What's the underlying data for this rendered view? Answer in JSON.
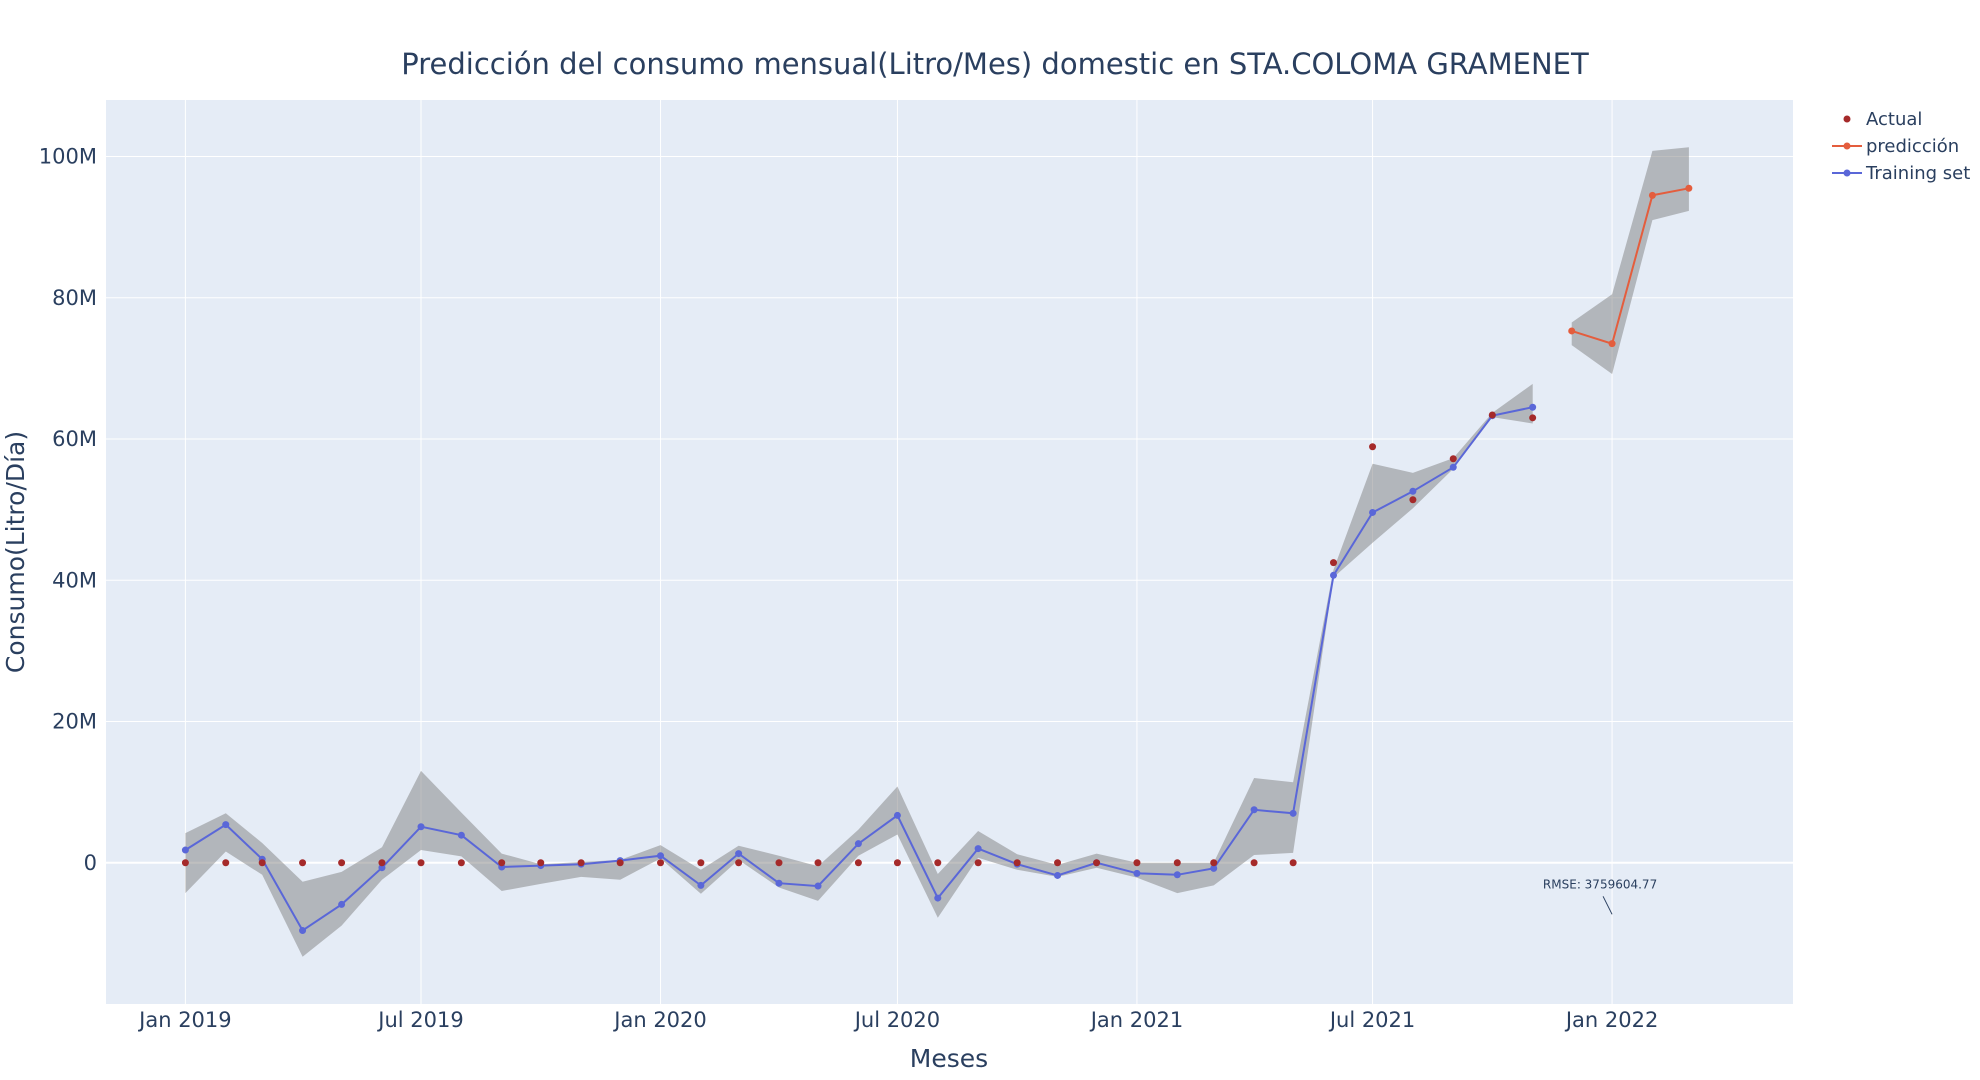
{
  "chart_data": {
    "type": "line",
    "title": "Predicción del consumo mensual(Litro/Mes) domestic en STA.COLOMA GRAMENET",
    "xlabel": "Meses",
    "ylabel": "Consumo(Litro/Día)",
    "x_range": [
      "2018-11-01",
      "2022-05-20"
    ],
    "y_range": [
      -20000000,
      108000000
    ],
    "x_ticks": [
      {
        "date": "2019-01-01",
        "label": "Jan 2019"
      },
      {
        "date": "2019-07-01",
        "label": "Jul 2019"
      },
      {
        "date": "2020-01-01",
        "label": "Jan 2020"
      },
      {
        "date": "2020-07-01",
        "label": "Jul 2020"
      },
      {
        "date": "2021-01-01",
        "label": "Jan 2021"
      },
      {
        "date": "2021-07-01",
        "label": "Jul 2021"
      },
      {
        "date": "2022-01-01",
        "label": "Jan 2022"
      }
    ],
    "y_ticks": [
      {
        "value": 0,
        "label": "0"
      },
      {
        "value": 20000000,
        "label": "20M"
      },
      {
        "value": 40000000,
        "label": "40M"
      },
      {
        "value": 60000000,
        "label": "60M"
      },
      {
        "value": 80000000,
        "label": "80M"
      },
      {
        "value": 100000000,
        "label": "100M"
      }
    ],
    "grid": true,
    "legend_position": "top-right",
    "series": [
      {
        "name": "Actual",
        "mode": "markers",
        "color": "#a52a2a",
        "x": [
          "2019-01-01",
          "2019-02-01",
          "2019-03-01",
          "2019-04-01",
          "2019-05-01",
          "2019-06-01",
          "2019-07-01",
          "2019-08-01",
          "2019-09-01",
          "2019-10-01",
          "2019-11-01",
          "2019-12-01",
          "2020-01-01",
          "2020-02-01",
          "2020-03-01",
          "2020-04-01",
          "2020-05-01",
          "2020-06-01",
          "2020-07-01",
          "2020-08-01",
          "2020-09-01",
          "2020-10-01",
          "2020-11-01",
          "2020-12-01",
          "2021-01-01",
          "2021-02-01",
          "2021-03-01",
          "2021-04-01",
          "2021-05-01",
          "2021-06-01",
          "2021-07-01",
          "2021-08-01",
          "2021-09-01",
          "2021-10-01",
          "2021-11-01"
        ],
        "y": [
          0,
          0,
          0,
          0,
          0,
          0,
          0,
          0,
          0,
          0,
          0,
          0,
          0,
          0,
          0,
          0,
          0,
          0,
          0,
          0,
          0,
          0,
          0,
          0,
          0,
          0,
          0,
          0,
          0,
          42500000,
          58900000,
          51400000,
          57200000,
          63400000,
          63000000
        ]
      },
      {
        "name": "predicción",
        "mode": "lines+markers",
        "color": "#e45d3d",
        "x": [
          "2021-12-01",
          "2022-01-01",
          "2022-02-01",
          "2022-03-01"
        ],
        "y": [
          75300000,
          73500000,
          94500000,
          95500000
        ],
        "band_upper": [
          76500000,
          80500000,
          100800000,
          101300000
        ],
        "band_lower": [
          73300000,
          69200000,
          91000000,
          92300000
        ]
      },
      {
        "name": "Training set",
        "mode": "lines+markers",
        "color": "#5a67d8",
        "x": [
          "2019-01-01",
          "2019-02-01",
          "2019-03-01",
          "2019-04-01",
          "2019-05-01",
          "2019-06-01",
          "2019-07-01",
          "2019-08-01",
          "2019-09-01",
          "2019-10-01",
          "2019-11-01",
          "2019-12-01",
          "2020-01-01",
          "2020-02-01",
          "2020-03-01",
          "2020-04-01",
          "2020-05-01",
          "2020-06-01",
          "2020-07-01",
          "2020-08-01",
          "2020-09-01",
          "2020-10-01",
          "2020-11-01",
          "2020-12-01",
          "2021-01-01",
          "2021-02-01",
          "2021-03-01",
          "2021-04-01",
          "2021-05-01",
          "2021-06-01",
          "2021-07-01",
          "2021-08-01",
          "2021-09-01",
          "2021-10-01",
          "2021-11-01"
        ],
        "y": [
          1800000,
          5400000,
          500000,
          -9600000,
          -5900000,
          -700000,
          5100000,
          3900000,
          -600000,
          -400000,
          -200000,
          300000,
          1000000,
          -3200000,
          1300000,
          -2900000,
          -3300000,
          2700000,
          6700000,
          -5000000,
          2000000,
          -200000,
          -1800000,
          0,
          -1500000,
          -1700000,
          -800000,
          7500000,
          7000000,
          40700000,
          49600000,
          52600000,
          56000000,
          63300000,
          64500000
        ],
        "band_upper": [
          4200000,
          7000000,
          2800000,
          -2700000,
          -1300000,
          2200000,
          13000000,
          7100000,
          1300000,
          -200000,
          100000,
          400000,
          2500000,
          -1000000,
          2400000,
          1000000,
          -500000,
          4700000,
          10800000,
          -1600000,
          4500000,
          1200000,
          -300000,
          1300000,
          0,
          0,
          0,
          12000000,
          11400000,
          41500000,
          56500000,
          55200000,
          57300000,
          63700000,
          67800000
        ],
        "band_lower": [
          -4300000,
          1600000,
          -1700000,
          -13300000,
          -8900000,
          -2400000,
          1800000,
          900000,
          -4000000,
          -3000000,
          -2000000,
          -2400000,
          600000,
          -4400000,
          400000,
          -3500000,
          -5400000,
          1000000,
          4000000,
          -7800000,
          700000,
          -1000000,
          -2000000,
          -700000,
          -2100000,
          -4300000,
          -3200000,
          1100000,
          1400000,
          40400000,
          45300000,
          50200000,
          55800000,
          63100000,
          62200000
        ]
      }
    ],
    "annotation": {
      "text": "RMSE: 3759604.77",
      "date": "2022-01-01",
      "value": -7300000
    }
  }
}
